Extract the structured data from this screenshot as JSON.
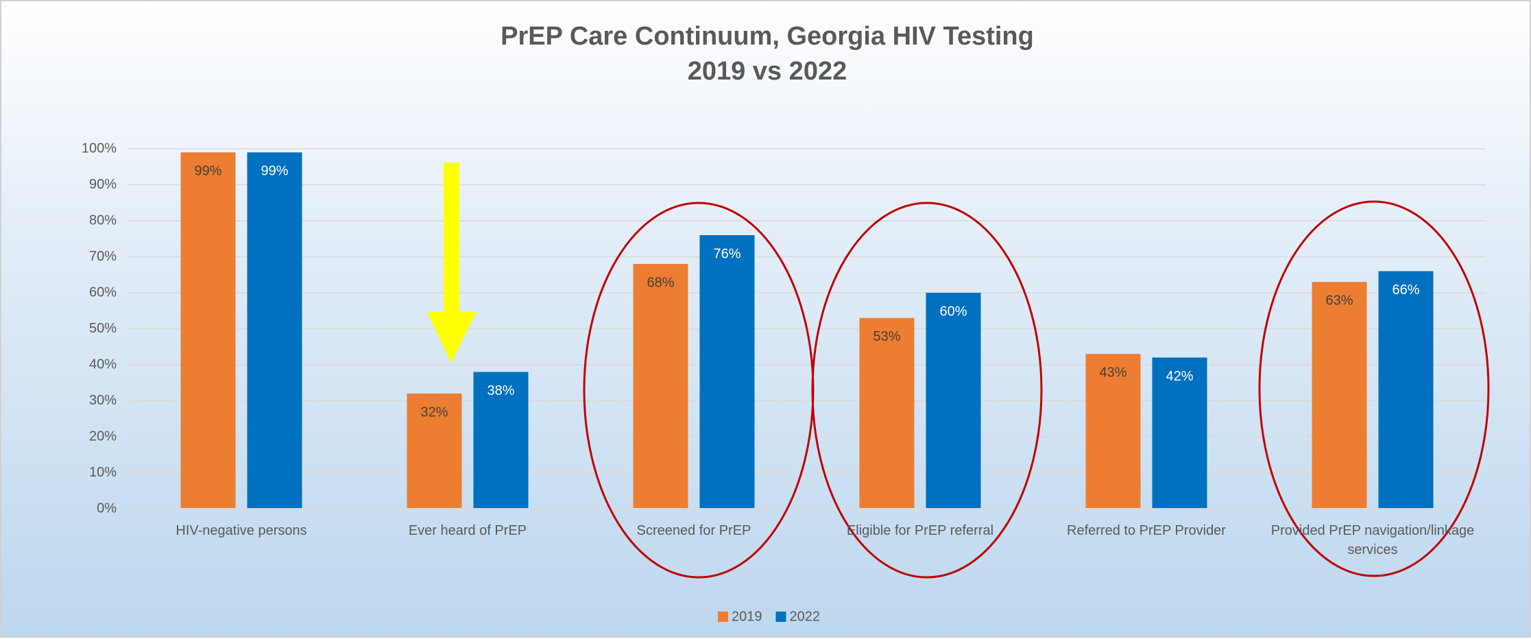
{
  "chart_data": {
    "type": "bar",
    "title": "PrEP Care Continuum, Georgia HIV Testing",
    "subtitle": "2019 vs 2022",
    "categories": [
      "HIV-negative persons",
      "Ever heard of PrEP",
      "Screened for PrEP",
      "Eligible for PrEP referral",
      "Referred to PrEP Provider",
      "Provided PrEP navigation/linkage services"
    ],
    "series": [
      {
        "name": "2019",
        "color": "#ed7d31",
        "values": [
          99,
          32,
          68,
          53,
          43,
          63
        ],
        "value_labels": [
          "99%",
          "32%",
          "68%",
          "53%",
          "43%",
          "63%"
        ]
      },
      {
        "name": "2022",
        "color": "#0070c0",
        "values": [
          99,
          38,
          76,
          60,
          42,
          66
        ],
        "value_labels": [
          "99%",
          "38%",
          "76%",
          "60%",
          "42%",
          "66%"
        ]
      }
    ],
    "ylim": [
      0,
      100
    ],
    "yticks": [
      {
        "value": 0,
        "label": "0%"
      },
      {
        "value": 10,
        "label": "10%"
      },
      {
        "value": 20,
        "label": "20%"
      },
      {
        "value": 30,
        "label": "30%"
      },
      {
        "value": 40,
        "label": "40%"
      },
      {
        "value": 50,
        "label": "50%"
      },
      {
        "value": 60,
        "label": "60%"
      },
      {
        "value": 70,
        "label": "70%"
      },
      {
        "value": 80,
        "label": "80%"
      },
      {
        "value": 90,
        "label": "90%"
      },
      {
        "value": 100,
        "label": "100%"
      }
    ],
    "grid": true,
    "legend": "bottom"
  }
}
